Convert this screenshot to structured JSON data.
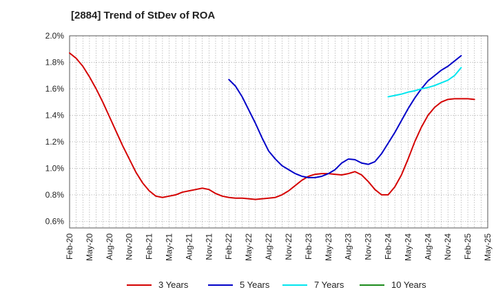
{
  "chart_data": {
    "type": "line",
    "title": "[2884]  Trend of StDev of ROA",
    "x_tick_labels": [
      "Feb-20",
      "May-20",
      "Aug-20",
      "Nov-20",
      "Feb-21",
      "May-21",
      "Aug-21",
      "Nov-21",
      "Feb-22",
      "May-22",
      "Aug-22",
      "Nov-22",
      "Feb-23",
      "May-23",
      "Aug-23",
      "Nov-23",
      "Feb-24",
      "May-24",
      "Aug-24",
      "Nov-24",
      "Feb-25",
      "May-25"
    ],
    "y_tick_labels": [
      "0.6%",
      "0.8%",
      "1.0%",
      "1.2%",
      "1.4%",
      "1.6%",
      "1.8%",
      "2.0%"
    ],
    "y_ticks": [
      0.6,
      0.8,
      1.0,
      1.2,
      1.4,
      1.6,
      1.8,
      2.0
    ],
    "ylim": [
      0.55,
      2.0
    ],
    "x_range_months": [
      0,
      63
    ],
    "grid": true,
    "legend_position": "bottom",
    "series": [
      {
        "name": "3 Years",
        "color": "#d40000",
        "x": [
          0,
          1,
          2,
          3,
          4,
          5,
          6,
          7,
          8,
          9,
          10,
          11,
          12,
          13,
          14,
          15,
          16,
          17,
          18,
          19,
          20,
          21,
          22,
          23,
          24,
          25,
          26,
          27,
          28,
          29,
          30,
          31,
          32,
          33,
          34,
          35,
          36,
          37,
          38,
          39,
          40,
          41,
          42,
          43,
          44,
          45,
          46,
          47,
          48,
          49,
          50,
          51,
          52,
          53,
          54,
          55,
          56,
          57,
          58,
          59,
          60,
          61,
          62,
          63
        ],
        "y": [
          1.87,
          1.83,
          1.77,
          1.69,
          1.6,
          1.5,
          1.39,
          1.28,
          1.17,
          1.07,
          0.97,
          0.89,
          0.83,
          0.79,
          0.78,
          0.79,
          0.8,
          0.82,
          0.83,
          0.84,
          0.85,
          0.84,
          0.81,
          0.79,
          0.78,
          0.775,
          0.775,
          0.77,
          0.765,
          0.77,
          0.775,
          0.78,
          0.8,
          0.83,
          0.87,
          0.91,
          0.94,
          0.955,
          0.96,
          0.96,
          0.955,
          0.95,
          0.96,
          0.975,
          0.95,
          0.9,
          0.84,
          0.8,
          0.8,
          0.86,
          0.95,
          1.07,
          1.2,
          1.31,
          1.4,
          1.46,
          1.5,
          1.52,
          1.525,
          1.525,
          1.525,
          1.52,
          null,
          null
        ]
      },
      {
        "name": "5 Years",
        "color": "#0000c8",
        "x": [
          24,
          25,
          26,
          27,
          28,
          29,
          30,
          31,
          32,
          33,
          34,
          35,
          36,
          37,
          38,
          39,
          40,
          41,
          42,
          43,
          44,
          45,
          46,
          47,
          48,
          49,
          50,
          51,
          52,
          53,
          54,
          55,
          56,
          57,
          58,
          59,
          60,
          61,
          62,
          63
        ],
        "y": [
          1.67,
          1.62,
          1.54,
          1.44,
          1.34,
          1.23,
          1.13,
          1.07,
          1.02,
          0.99,
          0.96,
          0.94,
          0.93,
          0.93,
          0.94,
          0.96,
          0.99,
          1.04,
          1.07,
          1.065,
          1.04,
          1.03,
          1.05,
          1.11,
          1.19,
          1.27,
          1.36,
          1.45,
          1.53,
          1.6,
          1.66,
          1.7,
          1.74,
          1.77,
          1.81,
          1.85,
          null,
          null,
          null,
          null
        ]
      },
      {
        "name": "7 Years",
        "color": "#00e5ee",
        "x": [
          48,
          49,
          50,
          51,
          52,
          53,
          54,
          55,
          56,
          57,
          58,
          59,
          60,
          61,
          62,
          63
        ],
        "y": [
          1.54,
          1.55,
          1.56,
          1.575,
          1.585,
          1.6,
          1.61,
          1.625,
          1.645,
          1.665,
          1.7,
          1.76,
          null,
          null,
          null,
          null
        ]
      },
      {
        "name": "10 Years",
        "color": "#1a8a1a",
        "x": [],
        "y": []
      }
    ]
  }
}
